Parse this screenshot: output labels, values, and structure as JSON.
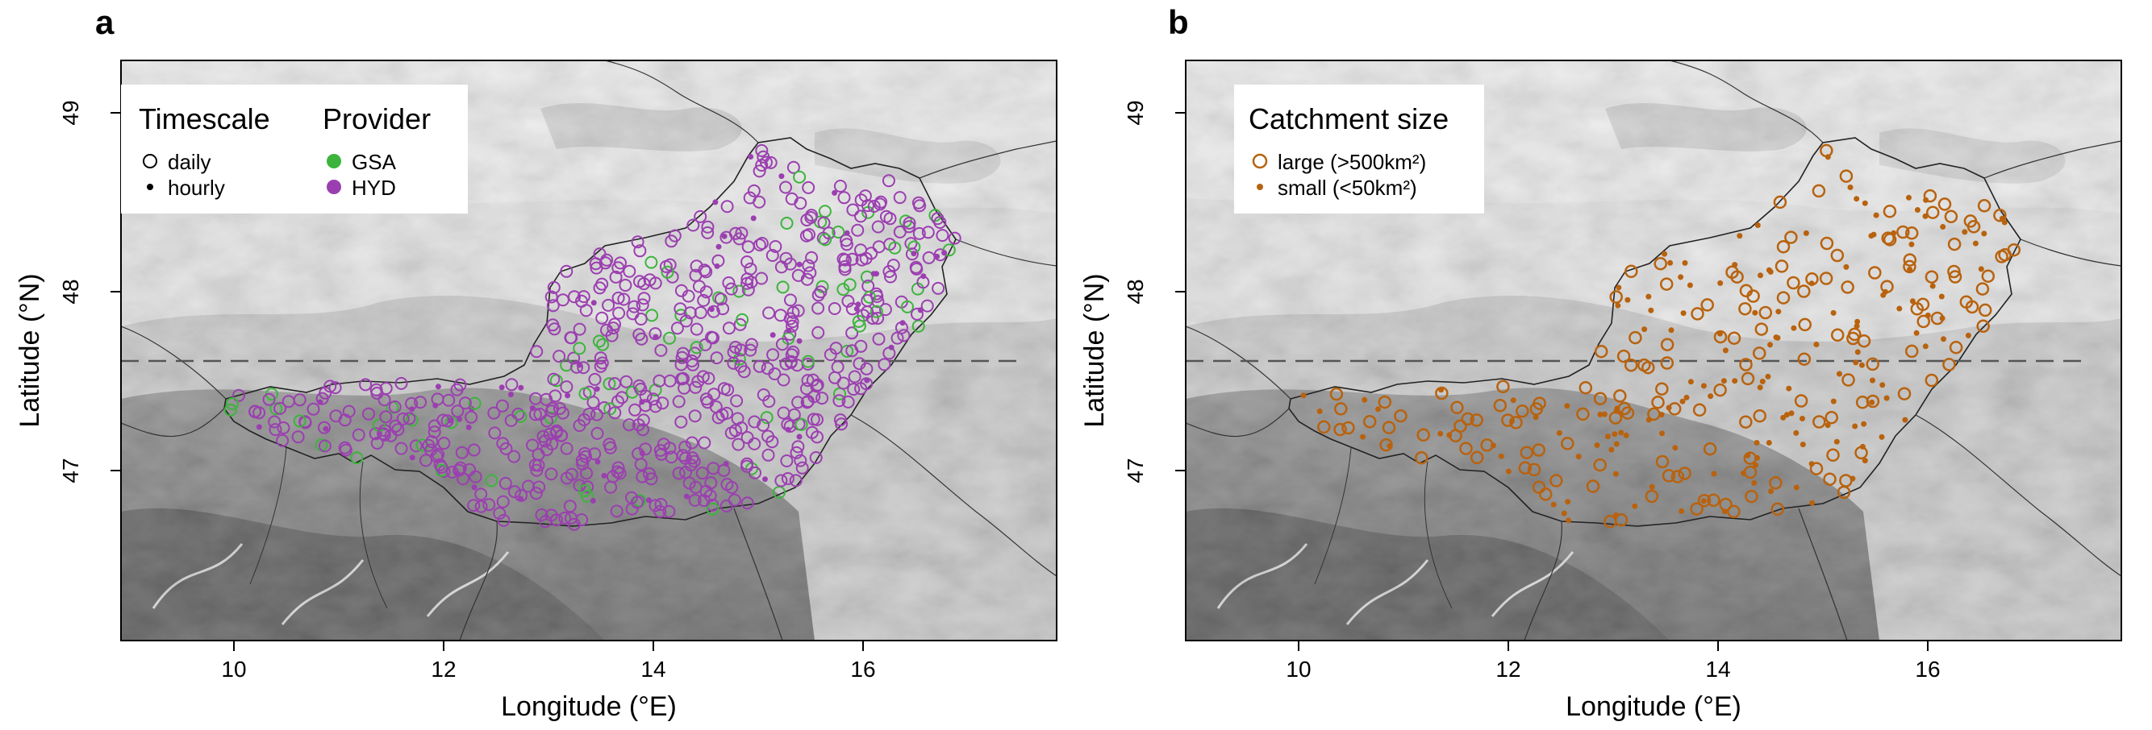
{
  "panels": [
    {
      "letter": "a",
      "xlabel": "Longitude (°E)",
      "ylabel": "Latitude (°N)",
      "xticks": [
        "10",
        "12",
        "14",
        "16"
      ],
      "yticks": [
        "47",
        "48",
        "49"
      ],
      "legend": {
        "groups": [
          {
            "title": "Timescale",
            "items": [
              {
                "label": "daily",
                "marker": "open-circle"
              },
              {
                "label": "hourly",
                "marker": "dot"
              }
            ]
          },
          {
            "title": "Provider",
            "items": [
              {
                "label": "GSA",
                "marker": "filled-green"
              },
              {
                "label": "HYD",
                "marker": "filled-purple"
              }
            ]
          }
        ]
      }
    },
    {
      "letter": "b",
      "xlabel": "Longitude (°E)",
      "ylabel": "Latitude (°N)",
      "xticks": [
        "10",
        "12",
        "14",
        "16"
      ],
      "yticks": [
        "47",
        "48",
        "49"
      ],
      "legend": {
        "groups": [
          {
            "title": "Catchment size",
            "items": [
              {
                "label": "large (>500km²)",
                "marker": "open-orange"
              },
              {
                "label": "small (<50km²)",
                "marker": "dot-orange"
              }
            ]
          }
        ]
      }
    }
  ],
  "map_extent": {
    "lon": [
      8.8,
      17.7
    ],
    "lat": [
      46.0,
      49.3
    ]
  },
  "dashed_line_lat": 47.6,
  "colors": {
    "hyd": "#9b3fb0",
    "gsa": "#3cb43c",
    "catchment": "#b8620e",
    "border": "#222222"
  }
}
